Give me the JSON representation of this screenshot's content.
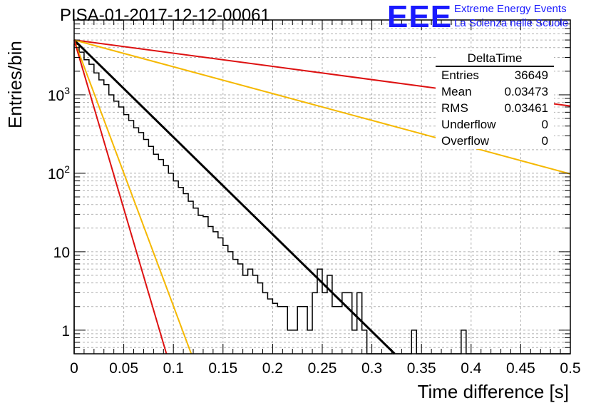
{
  "title": "PISA-01-2017-12-12-00061",
  "logo": {
    "mark": "EEE",
    "line1": "Extreme Energy Events",
    "line2": "La Scienza nelle Scuole",
    "color": "#1a1aff"
  },
  "stats": {
    "name": "DeltaTime",
    "rows": [
      {
        "label": "Entries",
        "value": "36649"
      },
      {
        "label": "Mean",
        "value": "0.03473"
      },
      {
        "label": "RMS",
        "value": "0.03461"
      },
      {
        "label": "Underflow",
        "value": "0"
      },
      {
        "label": "Overflow",
        "value": "0"
      }
    ]
  },
  "chart_data": {
    "type": "line",
    "xlabel": "Time difference [s]",
    "ylabel": "Entries/bin",
    "xlim": [
      0,
      0.5
    ],
    "ylim": [
      0.5,
      9000
    ],
    "log_y": true,
    "grid": true,
    "x_ticks": [
      "0",
      "0.05",
      "0.1",
      "0.15",
      "0.2",
      "0.25",
      "0.3",
      "0.35",
      "0.4",
      "0.45",
      "0.5"
    ],
    "y_ticks": [
      {
        "value": 1,
        "label": "1"
      },
      {
        "value": 10,
        "label": "10"
      },
      {
        "value": 100,
        "label": "10",
        "sup": "2"
      },
      {
        "value": 1000,
        "label": "10",
        "sup": "3"
      }
    ],
    "histogram": {
      "name": "DeltaTime",
      "bin_width": 0.005,
      "color": "#000000",
      "values": [
        4400,
        3500,
        2800,
        2450,
        1900,
        1550,
        1350,
        1000,
        830,
        700,
        560,
        470,
        380,
        330,
        270,
        220,
        175,
        150,
        125,
        100,
        80,
        66,
        55,
        44,
        36,
        29,
        28,
        21,
        18,
        15,
        12,
        10,
        8,
        7,
        5,
        6,
        5,
        4,
        3,
        2.5,
        2.2,
        2,
        2,
        1,
        1,
        2,
        2,
        1,
        3,
        6,
        3,
        5,
        2,
        2,
        3,
        3,
        1,
        3,
        1,
        0.5,
        0,
        0,
        0,
        0,
        0,
        0,
        0,
        0,
        1,
        0,
        0,
        0,
        0,
        0,
        0,
        0,
        0,
        0,
        1,
        0,
        0,
        0,
        0,
        0,
        0,
        0,
        0,
        0,
        0,
        0,
        0,
        0,
        0,
        0,
        0,
        0,
        0,
        0,
        0,
        0
      ]
    },
    "series": [
      {
        "color": "#000000",
        "width": 3,
        "points": [
          [
            0,
            5000
          ],
          [
            0.323,
            0.5
          ]
        ]
      },
      {
        "color": "#dd1111",
        "width": 2,
        "points": [
          [
            0,
            5000
          ],
          [
            0.5,
            720
          ]
        ]
      },
      {
        "color": "#f5b800",
        "width": 2,
        "points": [
          [
            0,
            5000
          ],
          [
            0.5,
            98
          ]
        ]
      },
      {
        "color": "#f5b800",
        "width": 2,
        "points": [
          [
            0,
            5000
          ],
          [
            0.118,
            0.5
          ]
        ]
      },
      {
        "color": "#dd1111",
        "width": 2,
        "points": [
          [
            0,
            5000
          ],
          [
            0.093,
            0.5
          ]
        ]
      }
    ]
  }
}
